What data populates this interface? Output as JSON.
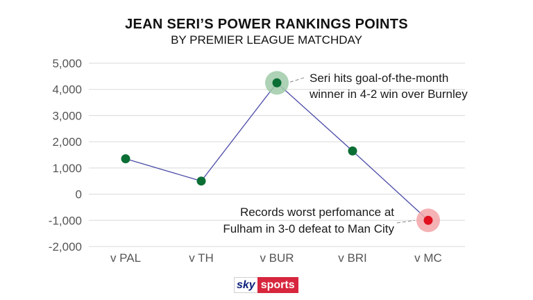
{
  "header": {
    "title": "JEAN SERI’S POWER RANKINGS POINTS",
    "subtitle": "BY PREMIER LEAGUE MATCHDAY"
  },
  "chart_data": {
    "type": "line",
    "categories": [
      "v PAL",
      "v TH",
      "v BUR",
      "v BRI",
      "v MC"
    ],
    "values": [
      1350,
      500,
      4250,
      1650,
      -1000
    ],
    "ylim": [
      -2000,
      5000
    ],
    "yticks": [
      5000,
      4000,
      3000,
      2000,
      1000,
      0,
      -1000,
      -2000
    ],
    "ytick_labels": [
      "5,000",
      "4,000",
      "3,000",
      "2,000",
      "1,000",
      "0",
      "-1,000",
      "-2,000"
    ],
    "grid": true,
    "highlights": [
      {
        "index": 2,
        "style": "green-halo"
      },
      {
        "index": 4,
        "style": "red-halo"
      }
    ],
    "annotations": [
      {
        "index": 2,
        "lines": [
          "Seri hits goal-of-the-month",
          "winner in 4-2 win over Burnley"
        ]
      },
      {
        "index": 4,
        "lines": [
          "Records worst perfomance at",
          "Fulham in 3-0 defeat to Man City"
        ]
      }
    ],
    "colors": {
      "point": "#0b6e34",
      "point_bad": "#e0101f",
      "halo_good": "#9fcaa8",
      "halo_bad": "#f2a4a8",
      "line": "#4a4aa8",
      "grid": "#d9d9d9",
      "axis_text": "#555555"
    }
  },
  "branding": {
    "logo_sky": "sky",
    "logo_sports": "sports"
  }
}
